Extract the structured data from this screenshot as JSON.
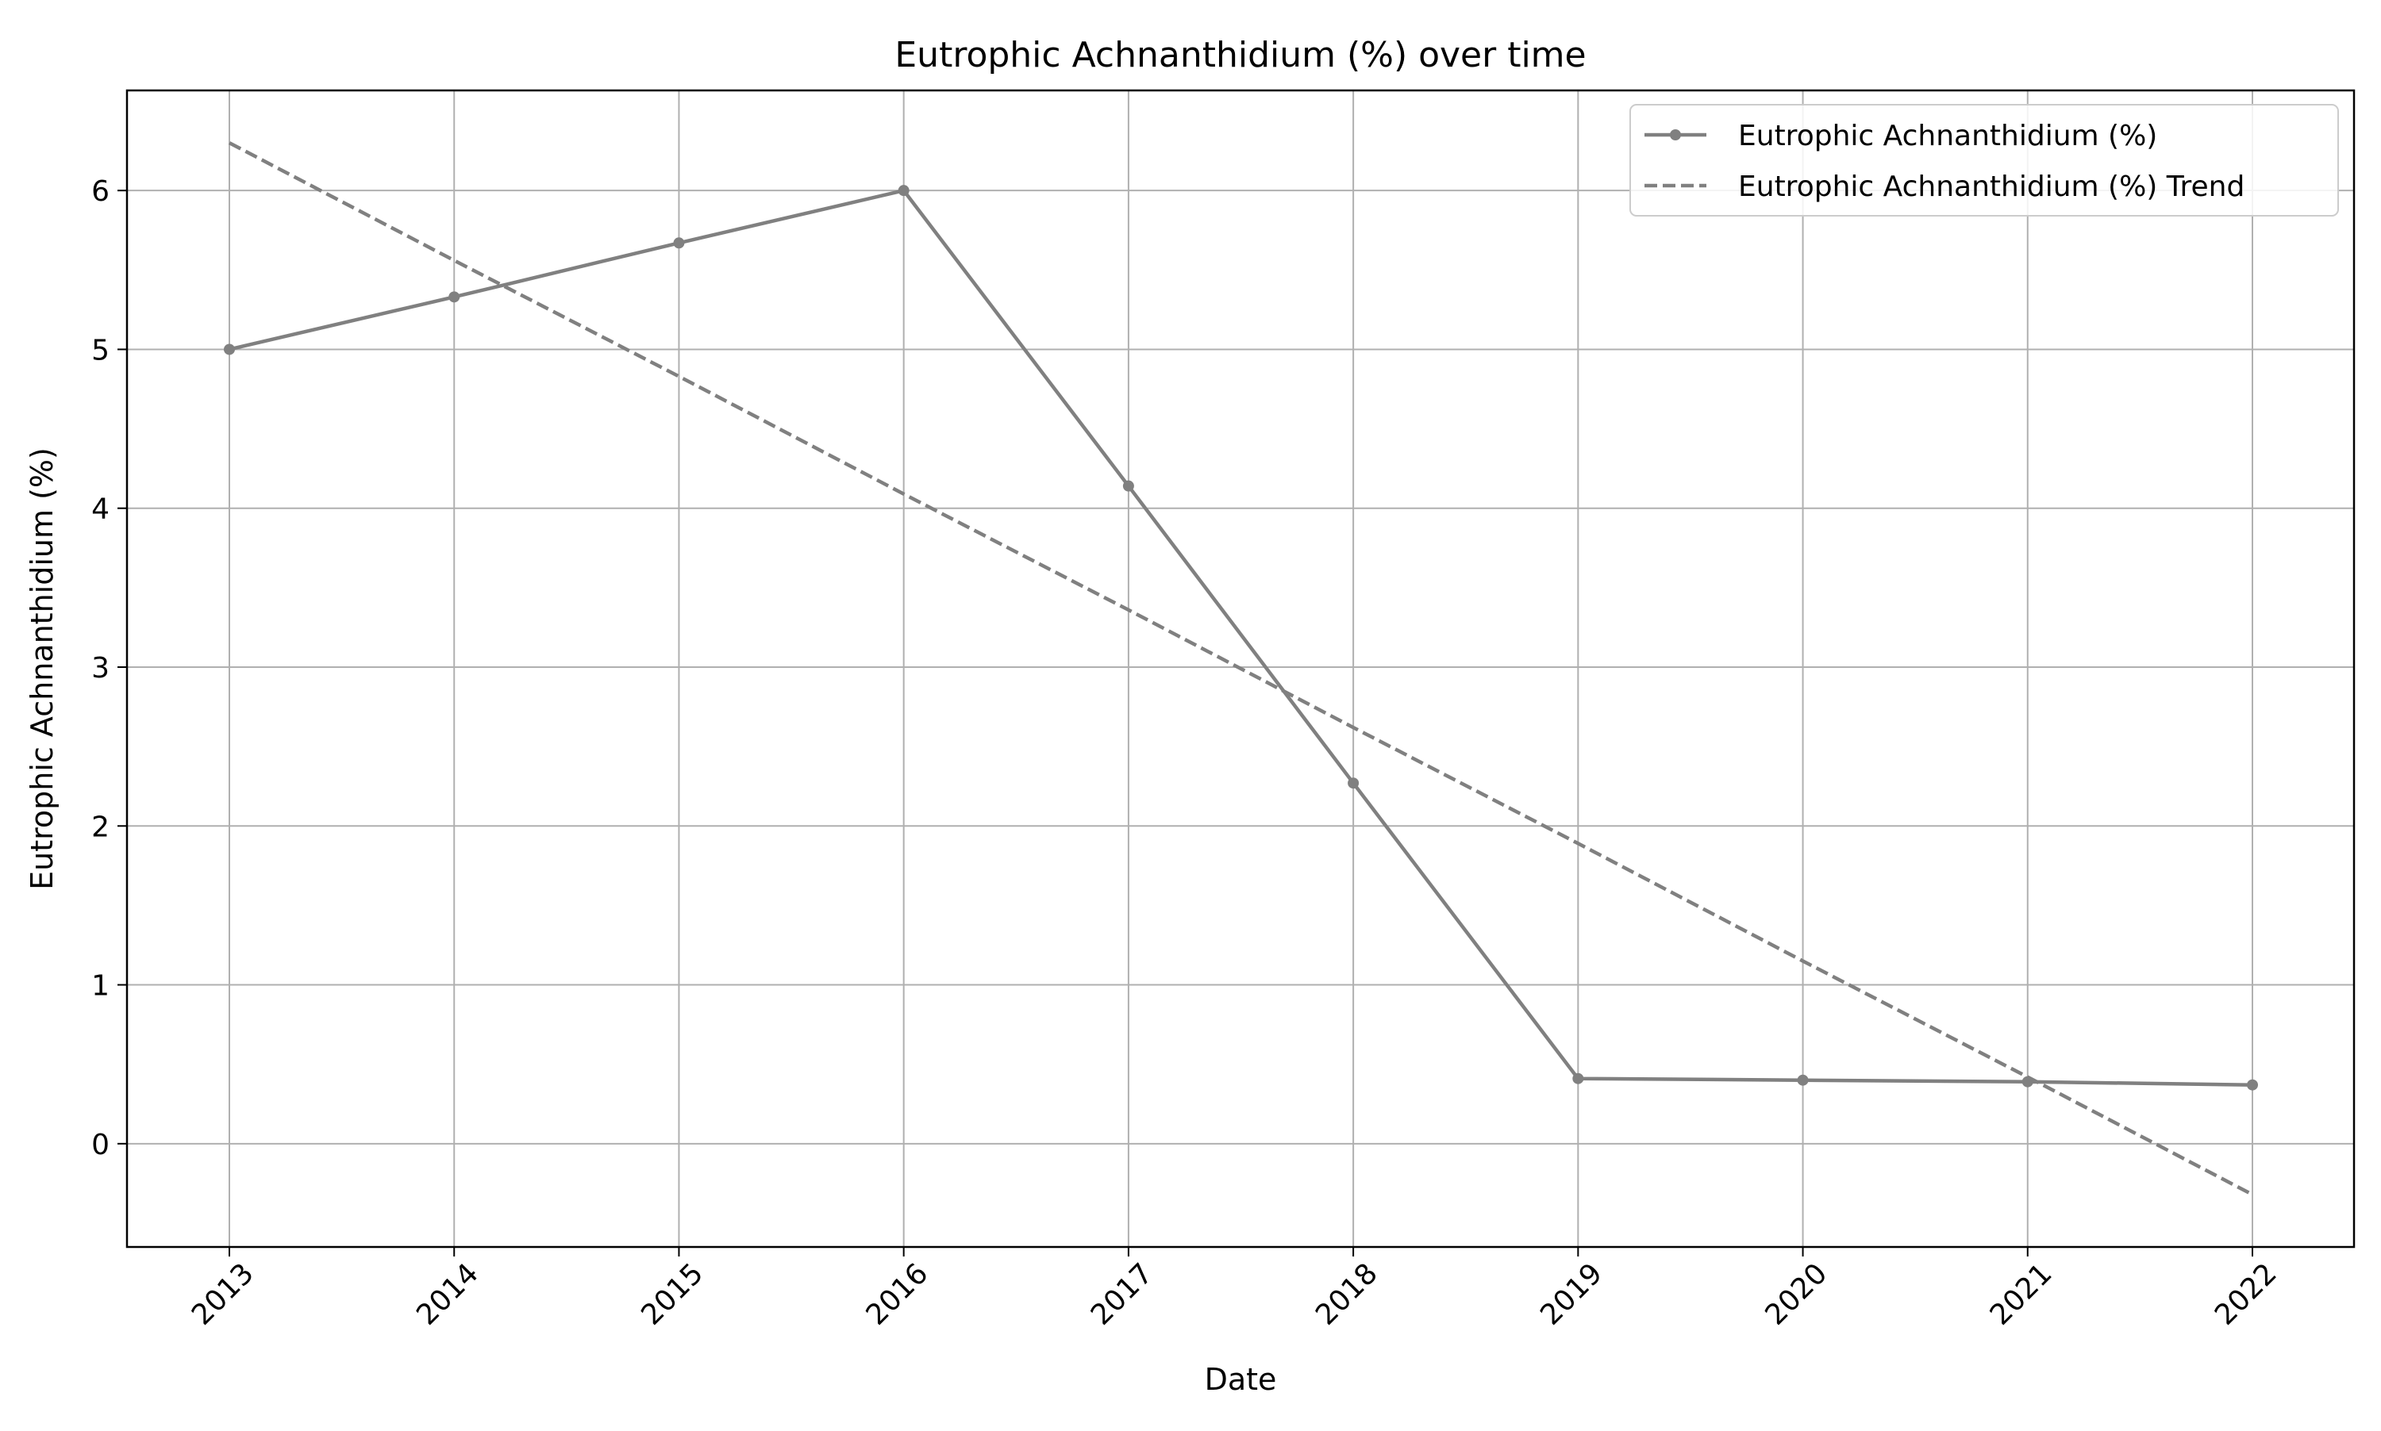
{
  "chart_data": {
    "type": "line",
    "title": "Eutrophic Achnanthidium (%) over time",
    "xlabel": "Date",
    "ylabel": "Eutrophic Achnanthidium (%)",
    "x": [
      "2013",
      "2014",
      "2015",
      "2016",
      "2017",
      "2018",
      "2019",
      "2020",
      "2021",
      "2022"
    ],
    "xlim": [
      "2012-07",
      "2022-06"
    ],
    "ylim": [
      -0.65,
      6.63
    ],
    "yticks": [
      0,
      1,
      2,
      3,
      4,
      5,
      6
    ],
    "grid": true,
    "legend_position": "top-right",
    "series": [
      {
        "name": "Eutrophic Achnanthidium (%)",
        "style": "solid",
        "marker": "circle",
        "color": "#808080",
        "values": [
          5.0,
          5.33,
          5.67,
          6.0,
          4.14,
          2.27,
          0.41,
          0.4,
          0.39,
          0.37
        ]
      },
      {
        "name": "Eutrophic Achnanthidium (%) Trend",
        "style": "dashed",
        "marker": "none",
        "color": "#808080",
        "values": [
          6.3,
          5.56,
          4.83,
          4.09,
          3.36,
          2.62,
          1.89,
          1.15,
          0.42,
          -0.32
        ]
      }
    ]
  }
}
